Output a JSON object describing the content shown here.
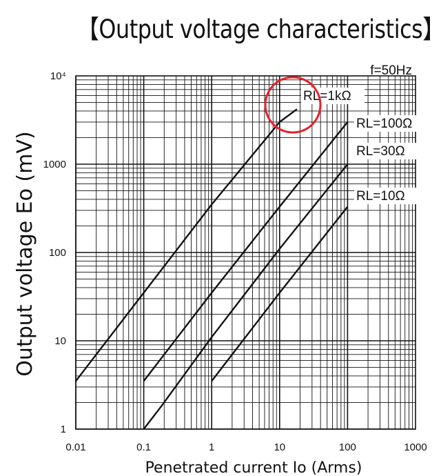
{
  "title": "【Output voltage characteristics】",
  "chart_data": {
    "type": "line",
    "title": "【Output voltage characteristics】",
    "xlabel": "Penetrated current Io (Arms)",
    "ylabel": "Output voltage Eo (mV)",
    "x_scale": "log",
    "y_scale": "log",
    "xlim": [
      0.01,
      1000
    ],
    "ylim": [
      1,
      10000
    ],
    "xticks": [
      "0.01",
      "0.1",
      "1",
      "10",
      "100",
      "1000"
    ],
    "yticks": [
      "1",
      "10",
      "100",
      "1000",
      "10⁴"
    ],
    "grid": true,
    "annotation": "f=50Hz",
    "highlight": {
      "series": "RL=1kΩ",
      "color": "#e8202a",
      "shape": "circle"
    },
    "series": [
      {
        "name": "RL=1kΩ",
        "x": [
          0.01,
          0.1,
          1,
          10,
          18
        ],
        "y": [
          3.5,
          35,
          350,
          3000,
          4200
        ]
      },
      {
        "name": "RL=100Ω",
        "x": [
          0.1,
          1,
          10,
          100
        ],
        "y": [
          3.5,
          35,
          330,
          3000
        ]
      },
      {
        "name": "RL=30Ω",
        "x": [
          0.1,
          0.18,
          1,
          10,
          100
        ],
        "y": [
          1,
          1.8,
          11,
          110,
          1000
        ]
      },
      {
        "name": "RL=10Ω",
        "x": [
          1,
          10,
          100
        ],
        "y": [
          3.5,
          35,
          330
        ]
      }
    ]
  }
}
